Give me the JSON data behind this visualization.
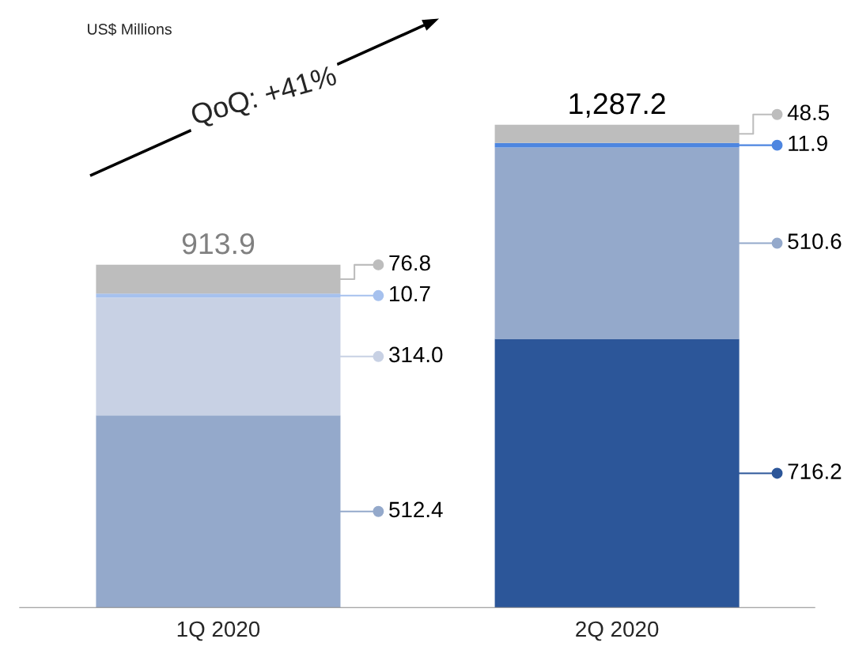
{
  "chart_data": {
    "type": "bar",
    "stacked": true,
    "categories": [
      "1Q 2020",
      "2Q 2020"
    ],
    "series": [
      {
        "color": "#2c5699",
        "values": [
          null,
          716.2
        ],
        "value_labels": [
          null,
          "716.2"
        ]
      },
      {
        "color": "#94a9cb",
        "values": [
          512.4,
          510.6
        ],
        "value_labels": [
          "512.4",
          "510.6"
        ]
      },
      {
        "color": "#c8d1e4",
        "values": [
          314.0,
          null
        ],
        "value_labels": [
          "314.0",
          null
        ]
      },
      {
        "color": "#a6c1ee",
        "values": [
          10.7,
          null
        ],
        "value_labels": [
          "10.7",
          null
        ]
      },
      {
        "color": "#4e86e0",
        "values": [
          null,
          11.9
        ],
        "value_labels": [
          null,
          "11.9"
        ]
      },
      {
        "color": "#bdbdbd",
        "values": [
          76.8,
          48.5
        ],
        "value_labels": [
          "76.8",
          "48.5"
        ]
      }
    ],
    "totals": [
      "913.9",
      "1,287.2"
    ],
    "annotations": [
      "US$ Millions",
      "QoQ: +41%"
    ],
    "legend": false,
    "grid": false
  }
}
